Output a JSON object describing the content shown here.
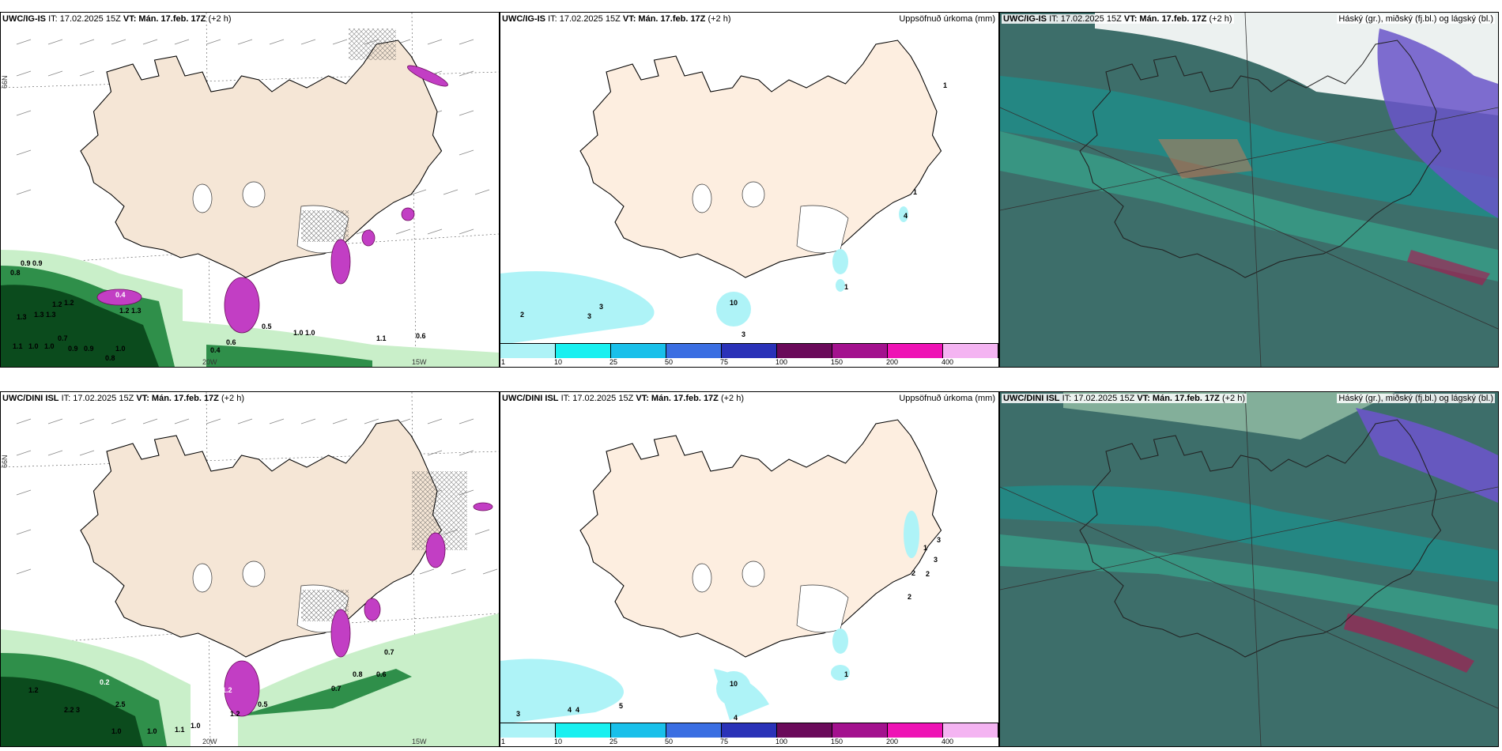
{
  "colors": {
    "land": "#f5e6d6",
    "sea": "#ffffff",
    "precip_light": "#aef3f7",
    "dark_green": "#0b4b1d",
    "mid_green": "#2f8f4a",
    "light_green": "#c9efc9",
    "magenta": "#c23ec4",
    "cloud_base": "#3d6e6a",
    "cloud_teal": "#1e8d8a",
    "cloud_purple": "#6a55c9",
    "cloud_bright": "#30e0b0"
  },
  "rows": [
    {
      "model": "UWC/IG-IS",
      "it": "IT: 17.02.2025 15Z",
      "vt_label": "VT:",
      "vt": "Mán. 17.feb. 17Z",
      "lead": "(+2 h)",
      "wind_labels": [
        "0.9 0.9",
        "0.8",
        "0.4",
        "1.3",
        "1.2",
        "1.3 1.3",
        "1.2 1.3",
        "1.2",
        "0.7",
        "1.1",
        "1.0",
        "1.0",
        "0.9",
        "0.9",
        "0.5",
        "1.0",
        "0.8",
        "0.5",
        "0.6",
        "1.0 1.0",
        "1.1",
        "0.6",
        "0.4"
      ],
      "precip_labels": [
        "1",
        "1",
        "4",
        "2",
        "3",
        "3",
        "10",
        "3",
        "1"
      ],
      "lat_lon": {
        "n66": "66N",
        "w15": "15W",
        "w20": "20W"
      }
    },
    {
      "model": "UWC/DINI ISL",
      "it": "IT: 17.02.2025 15Z",
      "vt_label": "VT:",
      "vt": "Mán. 17.feb. 17Z",
      "lead": "(+2 h)",
      "wind_labels": [
        "1.2",
        "0.2",
        "2.2 3",
        "2.5",
        "1.0",
        "1.0",
        "1.2",
        "1.0",
        "0.5",
        "0.7",
        "0.8",
        "0.6",
        "0.7",
        "1.2",
        "1.1"
      ],
      "precip_labels": [
        "1",
        "3",
        "2",
        "3",
        "2",
        "2",
        "1",
        "10",
        "5",
        "3",
        "4",
        "4",
        "4"
      ],
      "lat_lon": {
        "n66": "66N",
        "w15": "15W",
        "w20": "20W"
      }
    }
  ],
  "precip_title": "Uppsöfnuð úrkoma (mm)",
  "cloud_title": "Háský (gr.), miðský (fj.bl.) og lágský (bl.)",
  "colorbar": {
    "colors": [
      "#aef3f7",
      "#18f0f0",
      "#19c0ea",
      "#3a6ee2",
      "#2a32b8",
      "#6a0a5a",
      "#a3118e",
      "#ee13b5",
      "#f4b4f2"
    ],
    "ticks": [
      "1",
      "10",
      "25",
      "50",
      "75",
      "100",
      "150",
      "200",
      "400"
    ]
  }
}
